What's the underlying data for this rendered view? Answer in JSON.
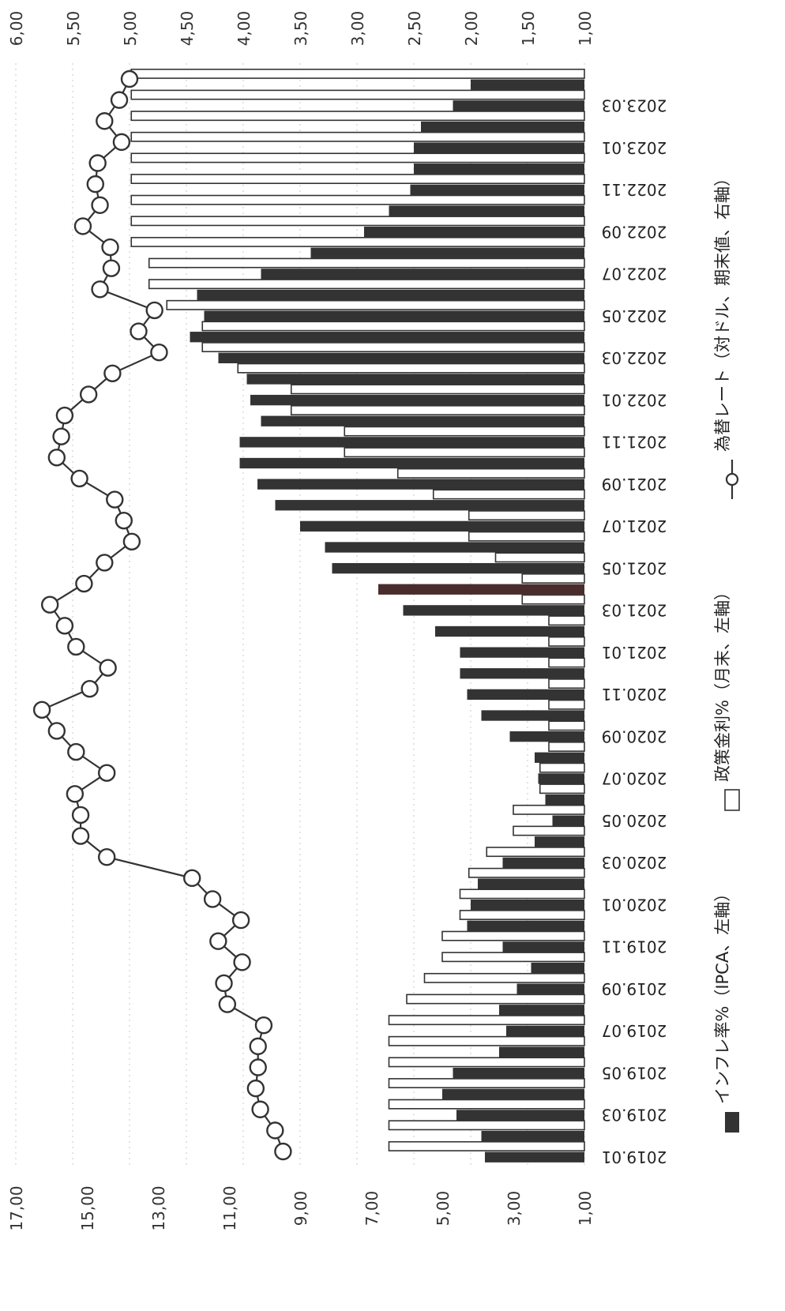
{
  "chart_data": {
    "type": "bar",
    "orientation": "horizontal",
    "periods": [
      "2019.01",
      "2019.02",
      "2019.03",
      "2019.04",
      "2019.05",
      "2019.06",
      "2019.07",
      "2019.08",
      "2019.09",
      "2019.10",
      "2019.11",
      "2019.12",
      "2020.01",
      "2020.02",
      "2020.03",
      "2020.04",
      "2020.05",
      "2020.06",
      "2020.07",
      "2020.08",
      "2020.09",
      "2020.10",
      "2020.11",
      "2020.12",
      "2021.01",
      "2021.02",
      "2021.03",
      "2021.04",
      "2021.05",
      "2021.06",
      "2021.07",
      "2021.08",
      "2021.09",
      "2021.10",
      "2021.11",
      "2021.12",
      "2022.01",
      "2022.02",
      "2022.03",
      "2022.04",
      "2022.05",
      "2022.06",
      "2022.07",
      "2022.08",
      "2022.09",
      "2022.10",
      "2022.11",
      "2022.12",
      "2023.01",
      "2023.02",
      "2023.03",
      "2023.04"
    ],
    "category_labels": [
      "2019.01",
      "2019.03",
      "2019.05",
      "2019.07",
      "2019.09",
      "2019.11",
      "2020.01",
      "2020.03",
      "2020.05",
      "2020.07",
      "2020.09",
      "2020.11",
      "2021.01",
      "2021.03",
      "2021.05",
      "2021.07",
      "2021.09",
      "2021.11",
      "2022.01",
      "2022.03",
      "2022.05",
      "2022.07",
      "2022.09",
      "2022.11",
      "2023.01",
      "2023.03"
    ],
    "left_axis": {
      "ticks": [
        "1,00",
        "3,00",
        "5,00",
        "7,00",
        "9,00",
        "11,00",
        "13,00",
        "15,00",
        "17,00"
      ],
      "range": [
        1,
        17
      ]
    },
    "right_axis": {
      "ticks": [
        "1,00",
        "1,50",
        "2,00",
        "2,50",
        "3,00",
        "3,50",
        "4,00",
        "4,50",
        "5,00",
        "5,50",
        "6,00"
      ],
      "range": [
        1,
        6
      ]
    },
    "series": [
      {
        "name": "インフレ率%（IPCA、左軸）",
        "style": "filled-bar",
        "color": "#333333",
        "values": [
          3.8,
          3.9,
          4.6,
          5.0,
          4.7,
          3.4,
          3.2,
          3.4,
          2.9,
          2.5,
          3.3,
          4.3,
          4.2,
          4.0,
          3.3,
          2.4,
          1.9,
          2.1,
          2.3,
          2.4,
          3.1,
          3.9,
          4.3,
          4.5,
          4.5,
          5.2,
          6.1,
          6.8,
          8.1,
          8.3,
          9.0,
          9.7,
          10.2,
          10.7,
          10.7,
          10.1,
          10.4,
          10.5,
          11.3,
          12.1,
          11.7,
          11.9,
          10.1,
          8.7,
          7.2,
          6.5,
          5.9,
          5.8,
          5.8,
          5.6,
          4.7,
          4.2
        ]
      },
      {
        "name": "政策金利%（月末、左軸）",
        "style": "outline-bar",
        "color": "#333333",
        "values": [
          6.5,
          6.5,
          6.5,
          6.5,
          6.5,
          6.5,
          6.5,
          6.0,
          5.5,
          5.0,
          5.0,
          4.5,
          4.5,
          4.25,
          3.75,
          3.0,
          3.0,
          2.25,
          2.25,
          2.0,
          2.0,
          2.0,
          2.0,
          2.0,
          2.0,
          2.0,
          2.75,
          2.75,
          3.5,
          4.25,
          4.25,
          5.25,
          6.25,
          7.75,
          7.75,
          9.25,
          9.25,
          10.75,
          11.75,
          11.75,
          12.75,
          13.25,
          13.25,
          13.75,
          13.75,
          13.75,
          13.75,
          13.75,
          13.75,
          13.75,
          13.75,
          13.75
        ]
      },
      {
        "name": "為替レート（対ドル、期末値、右軸）",
        "style": "line-marker",
        "color": "#333333",
        "values": [
          3.65,
          3.72,
          3.85,
          3.89,
          3.87,
          3.87,
          3.82,
          4.14,
          4.17,
          4.01,
          4.22,
          4.02,
          4.27,
          4.45,
          5.2,
          5.43,
          5.43,
          5.48,
          5.2,
          5.47,
          5.64,
          5.77,
          5.35,
          5.19,
          5.47,
          5.57,
          5.7,
          5.4,
          5.22,
          4.98,
          5.05,
          5.13,
          5.44,
          5.64,
          5.6,
          5.57,
          5.36,
          5.15,
          4.74,
          4.92,
          4.78,
          5.26,
          5.16,
          5.17,
          5.41,
          5.26,
          5.3,
          5.28,
          5.07,
          5.22,
          5.09,
          5.0
        ]
      }
    ],
    "legend_placement": "bottom",
    "grid": true
  }
}
